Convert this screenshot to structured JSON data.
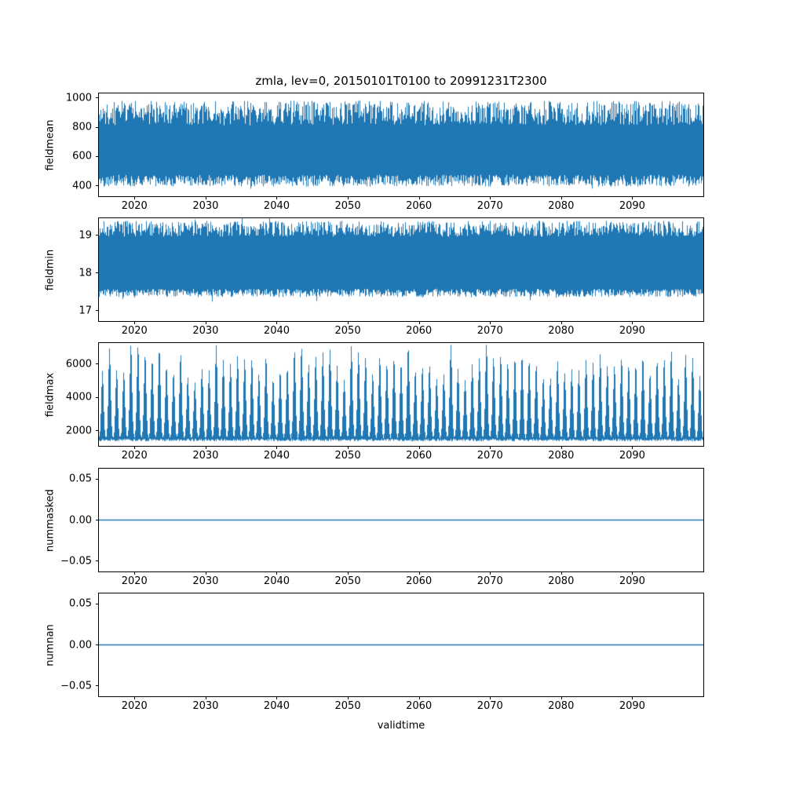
{
  "figure": {
    "title": "zmla, lev=0, 20150101T0100 to 20991231T2300",
    "xlabel": "validtime",
    "background": "#ffffff",
    "line_color": "#1f77b4",
    "axis_color": "#000000"
  },
  "chart_data": [
    {
      "type": "line",
      "name": "fieldmean",
      "ylabel": "fieldmean",
      "ylim": [
        330,
        1030
      ],
      "ytick_values": [
        400,
        600,
        800,
        1000
      ],
      "ytick_labels": [
        "400",
        "600",
        "800",
        "1000"
      ],
      "x_range": [
        2015,
        2100
      ],
      "xticks": [
        2020,
        2030,
        2040,
        2050,
        2060,
        2070,
        2080,
        2090
      ],
      "value_range": [
        380,
        1000
      ],
      "series_style": "noise-band",
      "band": {
        "min_base": 396,
        "min_jitter": 80,
        "max_base": 812,
        "max_jitter": 168,
        "min_spike": 22,
        "max_spike": 20
      },
      "seed": 42,
      "grid": false,
      "legend": false
    },
    {
      "type": "line",
      "name": "fieldmin",
      "ylabel": "fieldmin",
      "ylim": [
        16.72,
        19.46
      ],
      "ytick_values": [
        17,
        18,
        19
      ],
      "ytick_labels": [
        "17",
        "18",
        "19"
      ],
      "x_range": [
        2015,
        2100
      ],
      "xticks": [
        2020,
        2030,
        2040,
        2050,
        2060,
        2070,
        2080,
        2090
      ],
      "value_range": [
        17.25,
        19.5
      ],
      "series_style": "noise-band",
      "band": {
        "min_base": 17.36,
        "min_jitter": 0.22,
        "max_base": 18.97,
        "max_jitter": 0.42,
        "min_spike": 0.12,
        "max_spike": 0.1
      },
      "seed": 7,
      "grid": false,
      "legend": false
    },
    {
      "type": "line",
      "name": "fieldmax",
      "ylabel": "fieldmax",
      "ylim": [
        1100,
        7260
      ],
      "ytick_values": [
        2000,
        4000,
        6000
      ],
      "ytick_labels": [
        "2000",
        "4000",
        "6000"
      ],
      "x_range": [
        2015,
        2100
      ],
      "xticks": [
        2020,
        2030,
        2040,
        2050,
        2060,
        2070,
        2080,
        2090
      ],
      "value_range": [
        1350,
        7200
      ],
      "series_style": "annual-peaks",
      "peaks": {
        "base": 1510,
        "floor_base": 1380,
        "floor_jitter": 140,
        "amp_base": 3300,
        "amp_jitter": 2500,
        "width": 0.16,
        "cap": 7150
      },
      "seed": 13,
      "grid": false,
      "legend": false
    },
    {
      "type": "line",
      "name": "nummasked",
      "ylabel": "nummasked",
      "ylim": [
        -0.0625,
        0.0625
      ],
      "ytick_values": [
        -0.05,
        0,
        0.05
      ],
      "ytick_labels": [
        "−0.05",
        "0.00",
        "0.05"
      ],
      "x_range": [
        2015,
        2100
      ],
      "xticks": [
        2020,
        2030,
        2040,
        2050,
        2060,
        2070,
        2080,
        2090
      ],
      "value_range": [
        0,
        0
      ],
      "series_style": "flat",
      "flat_value": 0,
      "seed": 4,
      "grid": false,
      "legend": false
    },
    {
      "type": "line",
      "name": "numnan",
      "ylabel": "numnan",
      "ylim": [
        -0.0625,
        0.0625
      ],
      "ytick_values": [
        -0.05,
        0,
        0.05
      ],
      "ytick_labels": [
        "−0.05",
        "0.00",
        "0.05"
      ],
      "x_range": [
        2015,
        2100
      ],
      "xticks": [
        2020,
        2030,
        2040,
        2050,
        2060,
        2070,
        2080,
        2090
      ],
      "value_range": [
        0,
        0
      ],
      "series_style": "flat",
      "flat_value": 0,
      "seed": 5,
      "grid": false,
      "legend": false
    }
  ]
}
